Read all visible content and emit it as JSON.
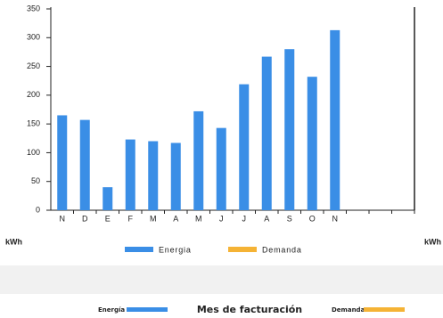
{
  "chart_data": {
    "type": "bar",
    "categories": [
      "N",
      "D",
      "E",
      "F",
      "M",
      "A",
      "M",
      "J",
      "J",
      "A",
      "S",
      "O",
      "N",
      null,
      null,
      null
    ],
    "series": [
      {
        "name": "Energia",
        "color": "#3a8ee6",
        "values": [
          165,
          157,
          40,
          123,
          120,
          117,
          172,
          143,
          219,
          267,
          280,
          232,
          313,
          null,
          null,
          null
        ]
      },
      {
        "name": "Demanda",
        "color": "#f5b335",
        "values": [
          null,
          null,
          null,
          null,
          null,
          null,
          null,
          null,
          null,
          null,
          null,
          null,
          null,
          null,
          null,
          null
        ]
      }
    ],
    "ylim": [
      0,
      350
    ],
    "yticks": [
      0,
      50,
      100,
      150,
      200,
      250,
      300,
      350
    ],
    "ylabel": "kWh",
    "y2label": "kWh",
    "legend": "bottom"
  },
  "footer": {
    "energy_label": "Energía",
    "title": "Mes de facturación",
    "demand_label": "Demanda"
  }
}
